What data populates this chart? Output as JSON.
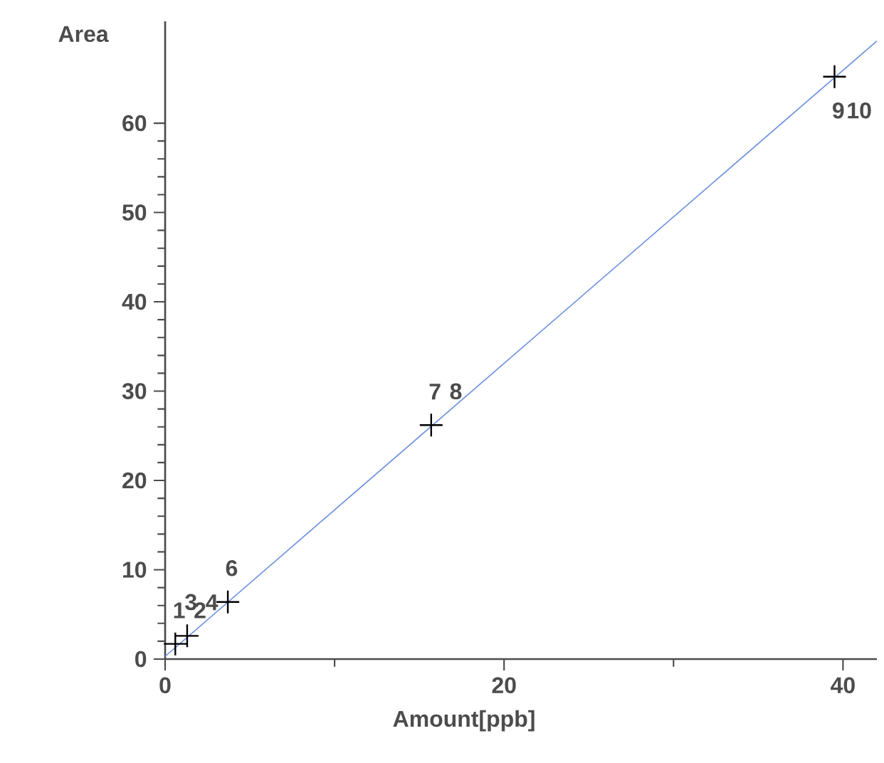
{
  "chart_data": {
    "type": "scatter",
    "xlabel": "Amount[ppb]",
    "ylabel": "Area",
    "xlim": [
      0,
      42
    ],
    "ylim": [
      0,
      71.4
    ],
    "xticks": [
      0,
      20,
      40
    ],
    "yticks": [
      0,
      10,
      20,
      30,
      40,
      50,
      60
    ],
    "series": [
      {
        "marker": "cross",
        "color": "#000000",
        "x": [
          0.6,
          1.3,
          3.7,
          15.7,
          39.5
        ],
        "values": [
          1.7,
          2.6,
          6.4,
          26.2,
          65.2
        ]
      },
      {
        "type": "line",
        "color": "#6b8fe0",
        "x": [
          0,
          42
        ],
        "values": [
          0.3,
          69.2
        ]
      }
    ],
    "annotations": [
      {
        "text": "1",
        "x": 0.6,
        "y": 1.7
      },
      {
        "text": "2",
        "x": 0.6,
        "y": 1.7
      },
      {
        "text": "3",
        "x": 1.3,
        "y": 2.6
      },
      {
        "text": "4",
        "x": 1.3,
        "y": 2.6
      },
      {
        "text": "6",
        "x": 3.7,
        "y": 6.4
      },
      {
        "text": "7",
        "x": 15.7,
        "y": 26.2
      },
      {
        "text": "8",
        "x": 15.7,
        "y": 26.2
      },
      {
        "text": "9",
        "x": 39.5,
        "y": 65.2
      },
      {
        "text": "10",
        "x": 39.5,
        "y": 65.2
      }
    ]
  }
}
